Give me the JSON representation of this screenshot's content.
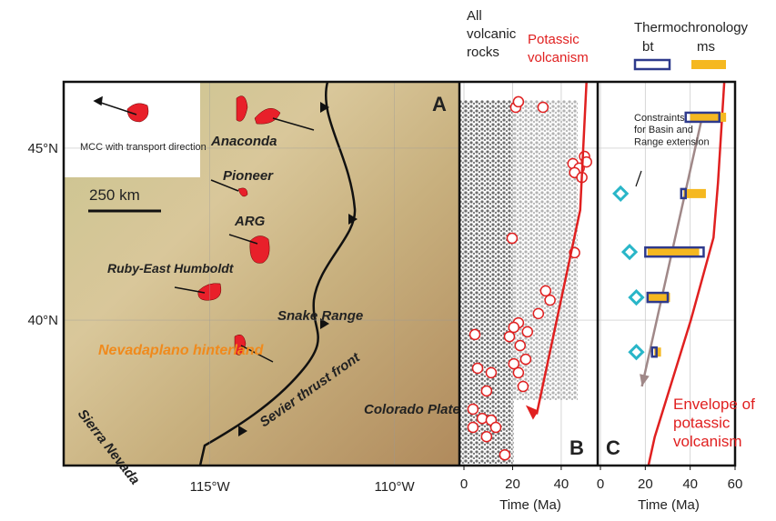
{
  "map": {
    "panel": "A",
    "ylim": [
      35.77,
      46.93
    ],
    "xlim": [
      -118.96,
      -108.24
    ],
    "lat_ticks": [
      {
        "value": 45,
        "label": "45°N"
      },
      {
        "value": 40,
        "label": "40°N"
      }
    ],
    "lon_ticks": [
      {
        "value": -115,
        "label": "115°W"
      },
      {
        "value": -110,
        "label": "110°W"
      }
    ],
    "legend": "MCC with transport direction",
    "scale": "250 km",
    "labels": [
      "Anaconda",
      "Pioneer",
      "ARG",
      "Ruby-East Humboldt",
      "Snake Range",
      "Nevadaplano hinterland",
      "Sierra Nevada",
      "Sevier thrust front",
      "Colorado Plateau"
    ]
  },
  "panel_b": {
    "panel": "B",
    "header_all": "All volcanic rocks",
    "header_potassic": "Potassic volcanism",
    "xlabel": "Time (Ma)",
    "xlim": [
      0,
      55
    ],
    "xticks": [
      0,
      20,
      40
    ],
    "ylim": [
      35.77,
      46.93
    ],
    "potassic": {
      "color": "#e02020",
      "x": [
        21.3,
        22.4,
        32.5,
        49.6,
        44.8,
        47.4,
        45.5,
        48.5,
        50.4,
        19.8,
        45.5,
        33.6,
        35.4,
        30.6,
        22.4,
        20.5,
        26.1,
        18.7,
        23.1,
        25.4,
        20.5,
        22.4,
        24.3,
        11.2,
        9.3,
        3.7,
        7.5,
        11.2,
        13.1,
        9.3,
        16.8,
        3.7,
        5.6,
        4.5
      ],
      "lat": [
        46.19,
        46.35,
        46.19,
        44.76,
        44.55,
        44.42,
        44.29,
        44.15,
        44.6,
        42.38,
        41.96,
        40.85,
        40.58,
        40.19,
        39.92,
        39.79,
        39.66,
        39.52,
        39.26,
        38.86,
        38.73,
        38.47,
        38.07,
        38.47,
        37.94,
        37.41,
        37.14,
        37.09,
        36.88,
        36.61,
        36.08,
        36.88,
        38.6,
        39.58
      ]
    },
    "trend": {
      "x": [
        50.4,
        47.8,
        29.9
      ],
      "lat": [
        46.93,
        43.2,
        37.26
      ]
    }
  },
  "panel_c": {
    "panel": "C",
    "header": "Thermochronology",
    "bt": "bt",
    "ms": "ms",
    "xlabel": "Time (Ma)",
    "xlim": [
      0,
      60
    ],
    "xticks": [
      0,
      20,
      40,
      60
    ],
    "ylim": [
      35.77,
      46.93
    ],
    "note": "Constraints for Basin and Range extension",
    "envelope_label": "Envelope of potassic volcanism",
    "bt_color": "#2e3a8c",
    "ms_color": "#f5b820",
    "diamond_color": "#29b6c8",
    "rows": [
      {
        "lat": 45.9,
        "bt": [
          38,
          53
        ],
        "ms": [
          40,
          56
        ],
        "diamond": null
      },
      {
        "lat": 43.68,
        "bt": [
          36,
          38
        ],
        "ms": [
          37,
          47
        ],
        "diamond": 9
      },
      {
        "lat": 41.98,
        "bt": [
          20,
          46
        ],
        "ms": [
          21,
          44
        ],
        "diamond": 13
      },
      {
        "lat": 40.66,
        "bt": [
          21,
          30
        ],
        "ms": [
          21,
          31
        ],
        "diamond": 16
      },
      {
        "lat": 39.07,
        "bt": [
          23,
          25
        ],
        "ms": [
          24,
          27
        ],
        "diamond": 16
      }
    ],
    "envelope": {
      "x": [
        55.2,
        52.4,
        50.4,
        40.3,
        24.2,
        21.4
      ],
      "lat": [
        46.93,
        44.0,
        42.4,
        40.0,
        36.6,
        35.77
      ]
    },
    "arrow": {
      "x": [
        45.2,
        18.5
      ],
      "lat": [
        45.87,
        38.07
      ]
    }
  }
}
